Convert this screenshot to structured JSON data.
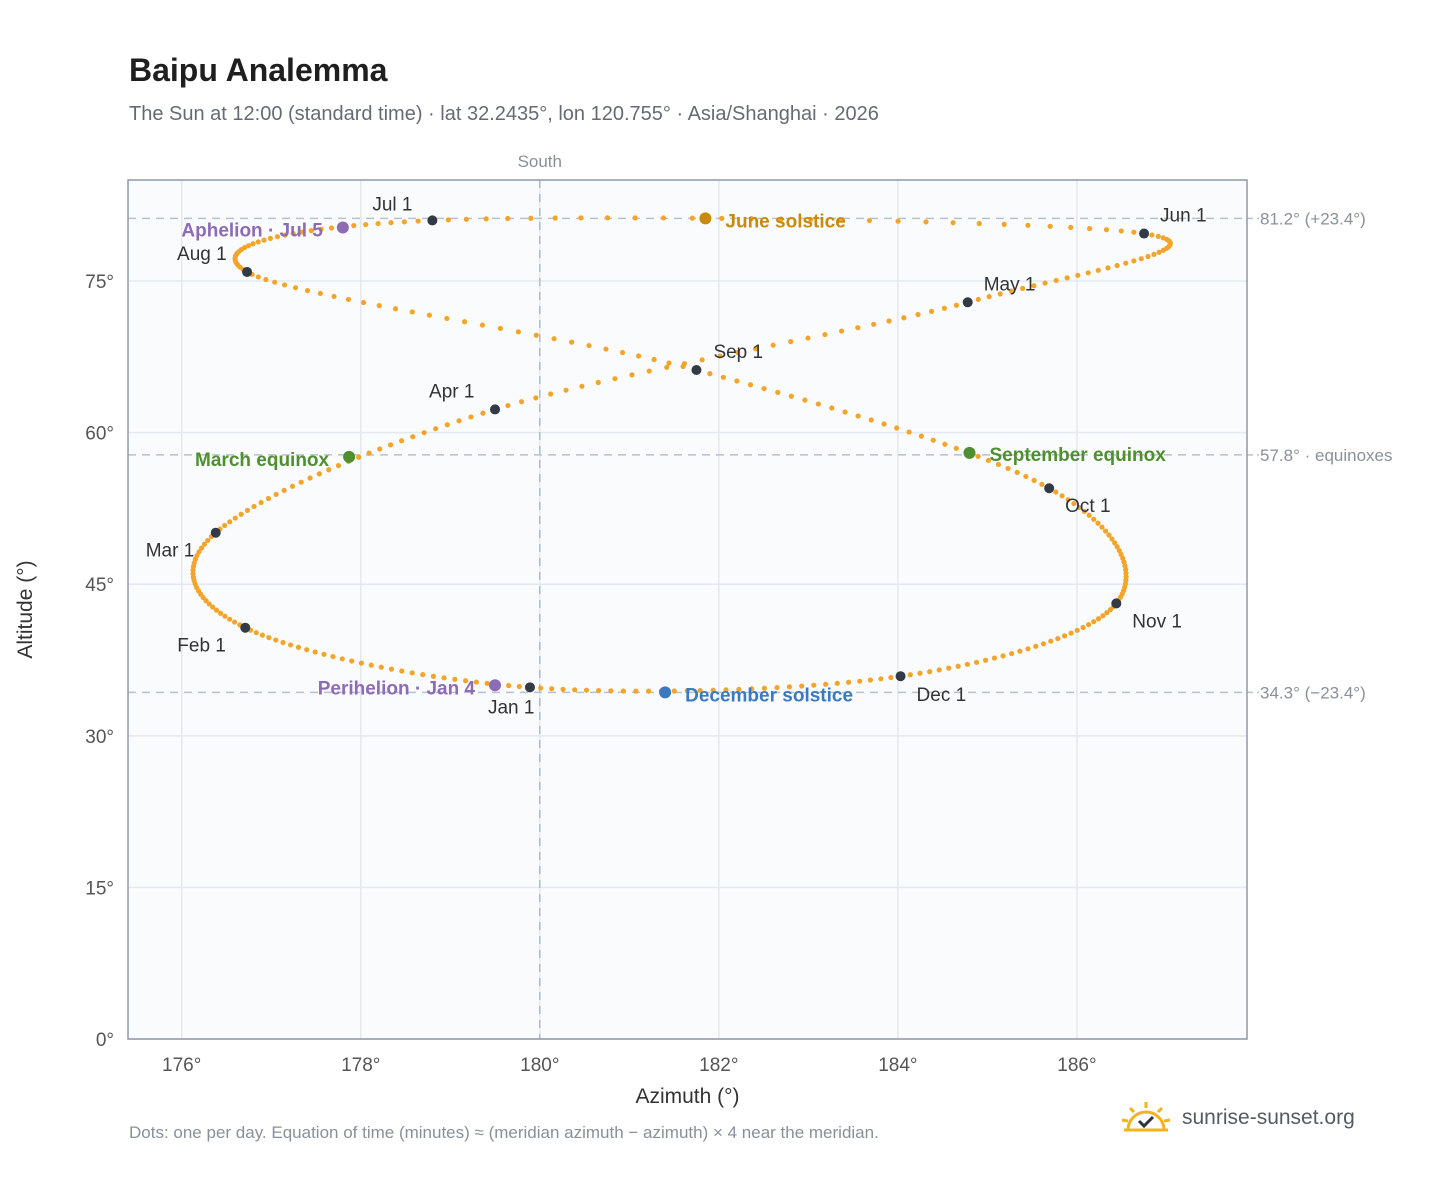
{
  "header": {
    "title": "Baipu Analemma",
    "subtitle": "The Sun at 12:00 (standard time) · lat 32.2435°, lon 120.755° · Asia/Shanghai · 2026"
  },
  "footer": {
    "note": "Dots: one per day. Equation of time (minutes) ≈ (meridian azimuth − azimuth) × 4 near the meridian.",
    "brand": "sunrise-sunset.org",
    "brand_icon": "sun-logo-icon"
  },
  "chart_data": {
    "type": "scatter",
    "title": "Baipu Analemma",
    "xlabel": "Azimuth (°)",
    "ylabel": "Altitude (°)",
    "xlim": [
      175.4,
      187.9
    ],
    "ylim": [
      0,
      85
    ],
    "xticks": [
      176,
      178,
      180,
      182,
      184,
      186
    ],
    "xtick_labels": [
      "176°",
      "178°",
      "180°",
      "182°",
      "184°",
      "186°"
    ],
    "yticks": [
      0,
      15,
      30,
      45,
      60,
      75
    ],
    "ytick_labels": [
      "0°",
      "15°",
      "30°",
      "45°",
      "60°",
      "75°"
    ],
    "grid": true,
    "meridian": {
      "x": 180,
      "label": "South"
    },
    "reference_lines": [
      {
        "y": 81.2,
        "label": "81.2° (+23.4°)"
      },
      {
        "y": 57.8,
        "label": "57.8° · equinoxes"
      },
      {
        "y": 34.3,
        "label": "34.3° (−23.4°)"
      }
    ],
    "series_color": "#f2a52a",
    "monthly_points": [
      {
        "label": "Jan 1",
        "az": 179.89,
        "alt": 34.8
      },
      {
        "label": "Feb 1",
        "az": 176.71,
        "alt": 40.7
      },
      {
        "label": "Mar 1",
        "az": 176.38,
        "alt": 50.1
      },
      {
        "label": "Apr 1",
        "az": 179.5,
        "alt": 62.3
      },
      {
        "label": "May 1",
        "az": 184.78,
        "alt": 72.9
      },
      {
        "label": "Jun 1",
        "az": 186.75,
        "alt": 79.7
      },
      {
        "label": "Jul 1",
        "az": 178.8,
        "alt": 81.0
      },
      {
        "label": "Aug 1",
        "az": 176.73,
        "alt": 75.9
      },
      {
        "label": "Sep 1",
        "az": 181.75,
        "alt": 66.2
      },
      {
        "label": "Oct 1",
        "az": 185.69,
        "alt": 54.5
      },
      {
        "label": "Nov 1",
        "az": 186.44,
        "alt": 43.1
      },
      {
        "label": "Dec 1",
        "az": 184.03,
        "alt": 35.9
      }
    ],
    "events": [
      {
        "label": "June solstice",
        "az": 181.85,
        "alt": 81.2,
        "color": "#c98a0b"
      },
      {
        "label": "Aphelion · Jul 5",
        "az": 177.8,
        "alt": 80.3,
        "color": "#8e6bb5"
      },
      {
        "label": "March equinox",
        "az": 177.87,
        "alt": 57.6,
        "color": "#4f8f2f"
      },
      {
        "label": "September equinox",
        "az": 184.8,
        "alt": 58.0,
        "color": "#4f8f2f"
      },
      {
        "label": "Perihelion · Jan 4",
        "az": 179.5,
        "alt": 35.0,
        "color": "#8e6bb5"
      },
      {
        "label": "December solstice",
        "az": 181.4,
        "alt": 34.3,
        "color": "#3a7ac0"
      }
    ],
    "legend": "none"
  }
}
